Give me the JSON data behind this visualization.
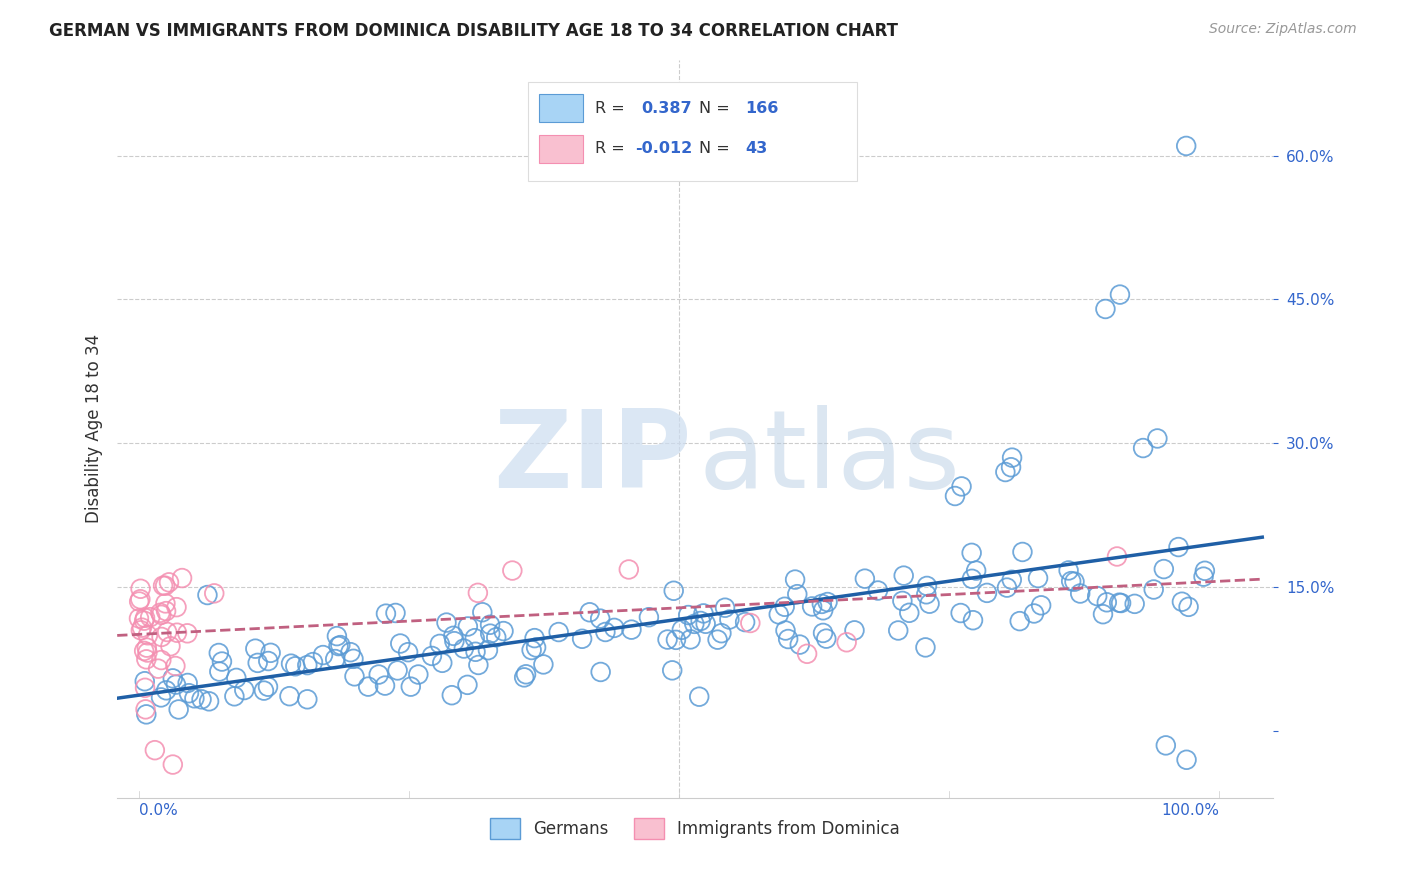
{
  "title": "GERMAN VS IMMIGRANTS FROM DOMINICA DISABILITY AGE 18 TO 34 CORRELATION CHART",
  "source": "Source: ZipAtlas.com",
  "ylabel": "Disability Age 18 to 34",
  "xlim": [
    -0.02,
    1.05
  ],
  "ylim": [
    -0.07,
    0.7
  ],
  "german_color": "#5b9bd5",
  "dominica_color": "#f48fb1",
  "trend_german_color": "#1f5fa6",
  "trend_dominica_color": "#c06080",
  "background_color": "#ffffff",
  "grid_color": "#cccccc",
  "watermark_zip_color": "#ccddf0",
  "watermark_atlas_color": "#b0c8e0",
  "r_value_color": "#3366cc",
  "ytick_color": "#3366cc",
  "xtick_color": "#3366cc"
}
